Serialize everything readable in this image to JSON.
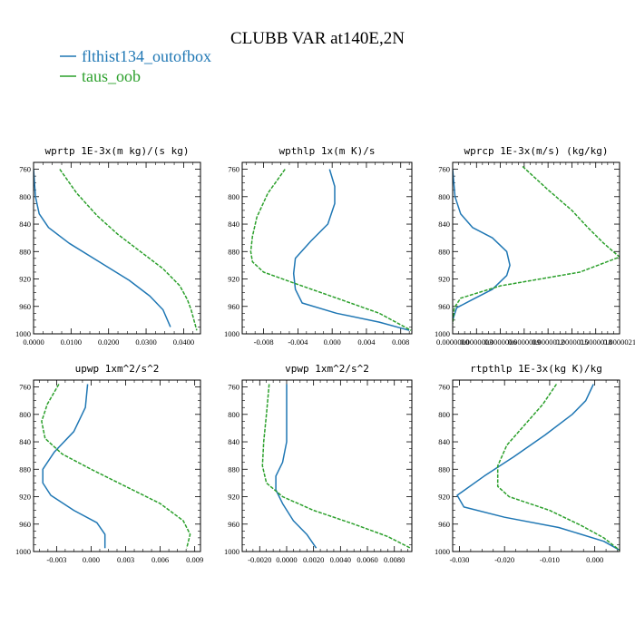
{
  "figure": {
    "title": "CLUBB VAR at140E,2N",
    "legend": [
      {
        "name": "flthist134_outofbox",
        "color": "#1f77b4"
      },
      {
        "name": "taus_oob",
        "color": "#2ca02c"
      }
    ]
  },
  "chart_data": [
    {
      "type": "line",
      "title": "wprtp  1E-3x(m kg)/(s kg)",
      "xlim": [
        0.0,
        0.0445
      ],
      "ylim": [
        1000,
        750
      ],
      "xticks": [
        0.0,
        0.01,
        0.02,
        0.03,
        0.04
      ],
      "xtick_labels": [
        "0.0000",
        "0.0100",
        "0.0200",
        "0.0300",
        "0.0400"
      ],
      "yticks": [
        760,
        800,
        840,
        880,
        920,
        960,
        1000
      ],
      "yscale": "linear",
      "grid": false,
      "series": [
        {
          "name": "flthist134_outofbox",
          "color": "#1f77b4",
          "style": "solid",
          "x": [
            0.0,
            0.0005,
            0.0015,
            0.004,
            0.0095,
            0.0175,
            0.0255,
            0.031,
            0.0345,
            0.0365
          ],
          "y": [
            760,
            800,
            825,
            845,
            868,
            895,
            922,
            945,
            965,
            990
          ]
        },
        {
          "name": "taus_oob",
          "color": "#2ca02c",
          "style": "dashed",
          "x": [
            0.007,
            0.0115,
            0.017,
            0.0225,
            0.0285,
            0.0345,
            0.039,
            0.041,
            0.042,
            0.0435
          ],
          "y": [
            760,
            795,
            828,
            855,
            880,
            905,
            930,
            950,
            965,
            995
          ]
        }
      ]
    },
    {
      "type": "line",
      "title": "wpthlp  1x(m K)/s",
      "xlim": [
        -0.0105,
        0.0093
      ],
      "ylim": [
        1000,
        750
      ],
      "xticks": [
        -0.008,
        -0.004,
        0.0,
        0.004,
        0.008
      ],
      "xtick_labels": [
        "-0.008",
        "-0.004",
        "0.000",
        "0.004",
        "0.008"
      ],
      "yticks": [
        760,
        800,
        840,
        880,
        920,
        960,
        1000
      ],
      "yscale": "linear",
      "grid": false,
      "series": [
        {
          "name": "flthist134_outofbox",
          "color": "#1f77b4",
          "style": "solid",
          "x": [
            -0.0003,
            0.0003,
            0.0003,
            -0.0005,
            -0.0025,
            -0.0043,
            -0.0045,
            -0.0043,
            -0.0035,
            0.0005,
            0.0055,
            0.009
          ],
          "y": [
            760,
            785,
            810,
            840,
            865,
            890,
            912,
            935,
            955,
            970,
            983,
            995
          ]
        },
        {
          "name": "taus_oob",
          "color": "#2ca02c",
          "style": "dashed",
          "x": [
            -0.0055,
            -0.0075,
            -0.0088,
            -0.0093,
            -0.0095,
            -0.0093,
            -0.008,
            -0.004,
            0.001,
            0.0055,
            0.0092
          ],
          "y": [
            760,
            795,
            830,
            858,
            880,
            895,
            910,
            928,
            950,
            970,
            995
          ]
        }
      ]
    },
    {
      "type": "line",
      "title": "wprcp  1E-3x(m/s) (kg/kg)",
      "xlim": [
        0.0,
        2.1e-06
      ],
      "ylim": [
        1000,
        750
      ],
      "xticks": [
        0.0,
        3e-07,
        6e-07,
        9e-07,
        1.2e-06,
        1.5e-06,
        1.8e-06,
        2.1e-06
      ],
      "xtick_labels": [
        "0.0000000",
        "0.0000003",
        "0.0000006",
        "0.0000009",
        "0.0000012",
        "0.0000015",
        "0.0000018",
        "0.0000021"
      ],
      "yticks": [
        760,
        800,
        840,
        880,
        920,
        960,
        1000
      ],
      "yscale": "linear",
      "grid": false,
      "series": [
        {
          "name": "flthist134_outofbox",
          "color": "#1f77b4",
          "style": "solid",
          "x": [
            0.0,
            3e-08,
            1e-07,
            2.5e-07,
            5e-07,
            6.8e-07,
            7.2e-07,
            6.8e-07,
            5e-07,
            2.5e-07,
            5e-08,
            0.0
          ],
          "y": [
            760,
            800,
            825,
            845,
            860,
            880,
            900,
            915,
            935,
            950,
            962,
            980
          ]
        },
        {
          "name": "taus_oob",
          "color": "#2ca02c",
          "style": "dashed",
          "x": [
            8.8e-07,
            1.2e-06,
            1.5e-06,
            1.7e-06,
            1.9e-06,
            2.1e-06,
            1.6e-06,
            6e-07,
            1e-07,
            2e-08,
            0.0
          ],
          "y": [
            756,
            790,
            820,
            845,
            868,
            888,
            910,
            930,
            948,
            962,
            985
          ]
        }
      ]
    },
    {
      "type": "line",
      "title": "upwp  1xm^2/s^2",
      "xlim": [
        -0.005,
        0.0095
      ],
      "ylim": [
        1000,
        750
      ],
      "xticks": [
        -0.003,
        0.0,
        0.003,
        0.006,
        0.009
      ],
      "xtick_labels": [
        "-0.003",
        "0.000",
        "0.003",
        "0.006",
        "0.009"
      ],
      "yticks": [
        760,
        800,
        840,
        880,
        920,
        960,
        1000
      ],
      "yscale": "linear",
      "grid": false,
      "series": [
        {
          "name": "flthist134_outofbox",
          "color": "#1f77b4",
          "style": "solid",
          "x": [
            -0.0003,
            -0.0005,
            -0.0015,
            -0.0032,
            -0.0042,
            -0.0042,
            -0.0035,
            -0.0015,
            0.0005,
            0.0012,
            0.0012
          ],
          "y": [
            756,
            790,
            825,
            855,
            880,
            900,
            918,
            940,
            958,
            975,
            995
          ]
        },
        {
          "name": "taus_oob",
          "color": "#2ca02c",
          "style": "dashed",
          "x": [
            -0.0028,
            -0.0038,
            -0.0043,
            -0.004,
            -0.0025,
            0.0,
            0.003,
            0.006,
            0.008,
            0.0086,
            0.0083
          ],
          "y": [
            756,
            785,
            810,
            835,
            858,
            880,
            905,
            930,
            955,
            975,
            995
          ]
        }
      ]
    },
    {
      "type": "line",
      "title": "vpwp  1xm^2/s^2",
      "xlim": [
        -0.0033,
        0.0093
      ],
      "ylim": [
        1000,
        750
      ],
      "xticks": [
        -0.002,
        0.0,
        0.002,
        0.004,
        0.006,
        0.008
      ],
      "xtick_labels": [
        "-0.0020",
        "0.0000",
        "0.0020",
        "0.0040",
        "0.0060",
        "0.0080"
      ],
      "yticks": [
        760,
        800,
        840,
        880,
        920,
        960,
        1000
      ],
      "yscale": "linear",
      "grid": false,
      "series": [
        {
          "name": "flthist134_outofbox",
          "color": "#1f77b4",
          "style": "solid",
          "x": [
            0.0,
            0.0,
            0.0,
            -0.0003,
            -0.0008,
            -0.0008,
            -0.0003,
            0.0005,
            0.0015,
            0.0022
          ],
          "y": [
            756,
            800,
            840,
            870,
            890,
            910,
            930,
            955,
            975,
            995
          ]
        },
        {
          "name": "taus_oob",
          "color": "#2ca02c",
          "style": "dashed",
          "x": [
            -0.0013,
            -0.0015,
            -0.0017,
            -0.0018,
            -0.0015,
            -0.0003,
            0.002,
            0.005,
            0.0075,
            0.0092
          ],
          "y": [
            756,
            800,
            840,
            875,
            900,
            920,
            940,
            960,
            978,
            995
          ]
        }
      ]
    },
    {
      "type": "line",
      "title": "rtpthlp  1E-3x(kg K)/kg",
      "xlim": [
        -0.0315,
        0.0055
      ],
      "ylim": [
        1000,
        750
      ],
      "xticks": [
        -0.03,
        -0.02,
        -0.01,
        0.0
      ],
      "xtick_labels": [
        "-0.030",
        "-0.020",
        "-0.010",
        "0.000"
      ],
      "yticks": [
        760,
        800,
        840,
        880,
        920,
        960,
        1000
      ],
      "yscale": "linear",
      "grid": false,
      "series": [
        {
          "name": "flthist134_outofbox",
          "color": "#1f77b4",
          "style": "solid",
          "x": [
            -0.0003,
            -0.002,
            -0.005,
            -0.011,
            -0.018,
            -0.0245,
            -0.0305,
            -0.029,
            -0.02,
            -0.008,
            0.002,
            0.0055
          ],
          "y": [
            756,
            780,
            800,
            830,
            862,
            890,
            918,
            935,
            950,
            965,
            985,
            998
          ]
        },
        {
          "name": "taus_oob",
          "color": "#2ca02c",
          "style": "dashed",
          "x": [
            -0.0085,
            -0.0115,
            -0.0155,
            -0.0195,
            -0.0215,
            -0.0215,
            -0.019,
            -0.01,
            -0.003,
            0.002,
            0.0055
          ],
          "y": [
            756,
            785,
            815,
            845,
            875,
            905,
            920,
            940,
            962,
            980,
            998
          ]
        }
      ]
    }
  ]
}
